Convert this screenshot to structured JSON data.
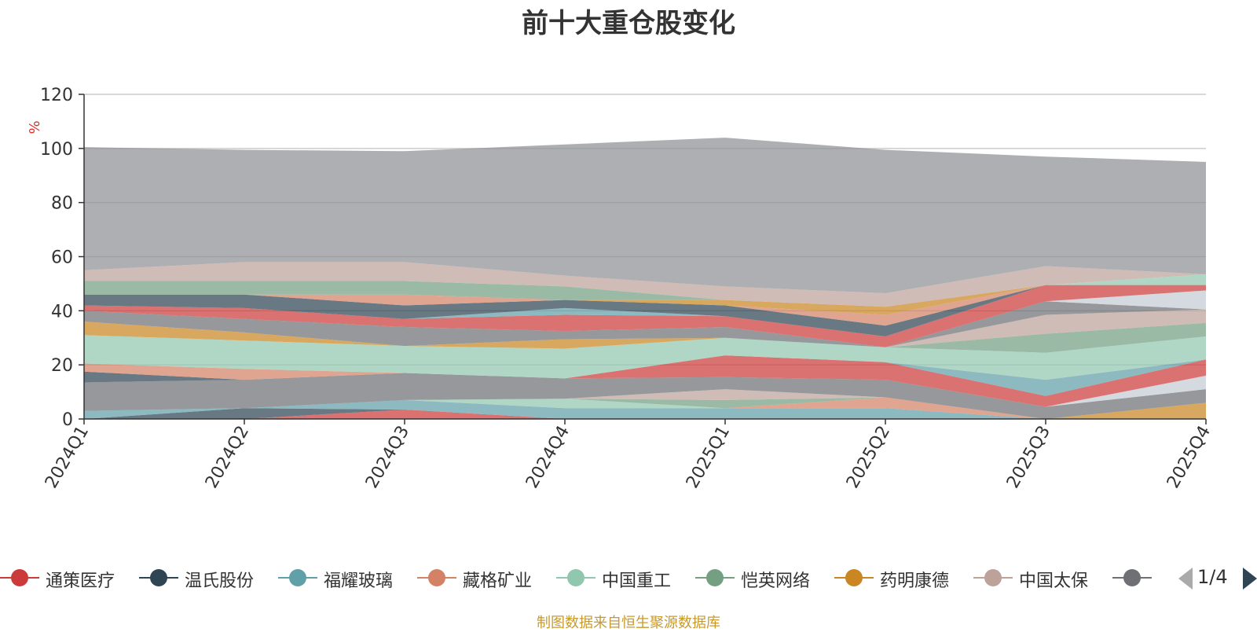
{
  "title": "前十大重仓股变化",
  "source_note": "制图数据来自恒生聚源数据库",
  "pager": {
    "text": "1/4"
  },
  "colors": {
    "others": "#8f9096",
    "grid": "#cccccc",
    "axis": "#333333",
    "ylabel": "#e0302b"
  },
  "chart_data": {
    "type": "area",
    "stacked": true,
    "ylabel": "%",
    "ylim": [
      0,
      120
    ],
    "yticks": [
      "0",
      "20",
      "40",
      "60",
      "80",
      "100",
      "120"
    ],
    "categories": [
      "2024Q1",
      "2024Q2",
      "2024Q3",
      "2024Q4",
      "2025Q1",
      "2025Q2",
      "2025Q3",
      "2025Q4"
    ],
    "series": [
      {
        "name": "通策医疗",
        "color": "#cc3b3b",
        "values": [
          0,
          0,
          3.5,
          0,
          0,
          0,
          0,
          0
        ]
      },
      {
        "name": "温氏股份",
        "color": "#2f4554",
        "values": [
          0,
          4,
          0,
          0,
          0,
          0,
          0,
          0
        ]
      },
      {
        "name": "福耀玻璃",
        "color": "#61a0a8",
        "values": [
          3,
          0,
          3.5,
          4,
          4,
          4,
          0,
          0
        ]
      },
      {
        "name": "藏格矿业",
        "color": "#d48265",
        "values": [
          0,
          0,
          0,
          0,
          0,
          4,
          0,
          0
        ]
      },
      {
        "name": "中国重工",
        "color": "#91c7ae",
        "values": [
          0,
          0,
          0,
          3.5,
          0,
          0,
          0,
          0
        ]
      },
      {
        "name": "恺英网络",
        "color": "#749f83",
        "values": [
          0,
          0,
          0,
          0,
          3,
          0,
          0,
          0
        ]
      },
      {
        "name": "药明康德",
        "color": "#ca8622",
        "values": [
          0,
          0,
          0,
          0,
          0,
          0,
          0,
          6
        ]
      },
      {
        "name": "中国太保",
        "color": "#bda29a",
        "values": [
          0,
          0,
          0,
          0,
          4,
          0,
          0,
          0
        ]
      },
      {
        "name": "",
        "color": "#6e7074",
        "values": [
          10.5,
          10.5,
          10,
          7.5,
          4.5,
          6.5,
          4.5,
          5
        ]
      },
      {
        "name": "",
        "color": "#c4ccd3",
        "values": [
          0,
          0,
          0,
          0,
          0,
          0,
          0,
          5
        ]
      },
      {
        "name": "",
        "color": "#cc3b3b",
        "values": [
          0,
          0,
          0,
          0,
          8,
          6.5,
          4,
          6
        ]
      },
      {
        "name": "",
        "color": "#61a0a8",
        "values": [
          0,
          0,
          0,
          0,
          0,
          0,
          6,
          0
        ]
      },
      {
        "name": "",
        "color": "#2f4554",
        "values": [
          4,
          0,
          0,
          0,
          0,
          0,
          0,
          0
        ]
      },
      {
        "name": "",
        "color": "#d48265",
        "values": [
          3,
          4,
          0,
          0,
          0,
          0,
          0,
          0
        ]
      },
      {
        "name": "",
        "color": "#91c7ae",
        "values": [
          10.5,
          10.5,
          10,
          11,
          6.5,
          5.5,
          10,
          8.5
        ]
      },
      {
        "name": "",
        "color": "#ca8622",
        "values": [
          5,
          3,
          0,
          3.5,
          0,
          0,
          0,
          0
        ]
      },
      {
        "name": "",
        "color": "#749f83",
        "values": [
          0,
          0,
          0,
          0,
          0,
          0,
          7,
          5
        ]
      },
      {
        "name": "",
        "color": "#bda29a",
        "values": [
          0,
          0,
          0,
          0,
          0,
          0,
          7,
          5
        ]
      },
      {
        "name": "",
        "color": "#6e7074",
        "values": [
          4,
          5,
          7,
          3,
          4,
          0,
          5,
          0
        ]
      },
      {
        "name": "",
        "color": "#c4ccd3",
        "values": [
          0,
          0,
          0,
          0,
          0,
          0,
          0,
          7
        ]
      },
      {
        "name": "",
        "color": "#cc3b3b",
        "values": [
          2,
          4,
          3,
          6,
          4,
          4,
          6,
          2
        ]
      },
      {
        "name": "",
        "color": "#61a0a8",
        "values": [
          0,
          0,
          0,
          2.5,
          0,
          0,
          0,
          0
        ]
      },
      {
        "name": "",
        "color": "#2f4554",
        "values": [
          4,
          5,
          5,
          3,
          4,
          4,
          0,
          0
        ]
      },
      {
        "name": "",
        "color": "#d48265",
        "values": [
          0,
          0,
          4,
          0,
          0,
          4,
          0,
          0
        ]
      },
      {
        "name": "",
        "color": "#ca8622",
        "values": [
          0,
          0,
          0,
          0,
          2,
          3,
          0,
          0
        ]
      },
      {
        "name": "",
        "color": "#749f83",
        "values": [
          5,
          5,
          5,
          5,
          0,
          0,
          0,
          0
        ]
      },
      {
        "name": "",
        "color": "#91c7ae",
        "values": [
          0,
          0,
          0,
          0,
          0,
          0,
          0,
          4
        ]
      },
      {
        "name": "",
        "color": "#bda29a",
        "values": [
          4,
          7,
          7,
          4,
          5,
          5,
          7,
          0
        ]
      },
      {
        "name": "",
        "color": "#8f9096",
        "values": [
          45.5,
          41.5,
          41,
          48.5,
          55,
          53,
          40.5,
          41.5
        ]
      }
    ]
  },
  "legend": [
    {
      "name": "通策医疗",
      "color": "#cc3b3b"
    },
    {
      "name": "温氏股份",
      "color": "#2f4554"
    },
    {
      "name": "福耀玻璃",
      "color": "#61a0a8"
    },
    {
      "name": "藏格矿业",
      "color": "#d48265"
    },
    {
      "name": "中国重工",
      "color": "#91c7ae"
    },
    {
      "name": "恺英网络",
      "color": "#749f83"
    },
    {
      "name": "药明康德",
      "color": "#ca8622"
    },
    {
      "name": "中国太保",
      "color": "#bda29a"
    },
    {
      "name": "",
      "color": "#6e7074"
    }
  ]
}
